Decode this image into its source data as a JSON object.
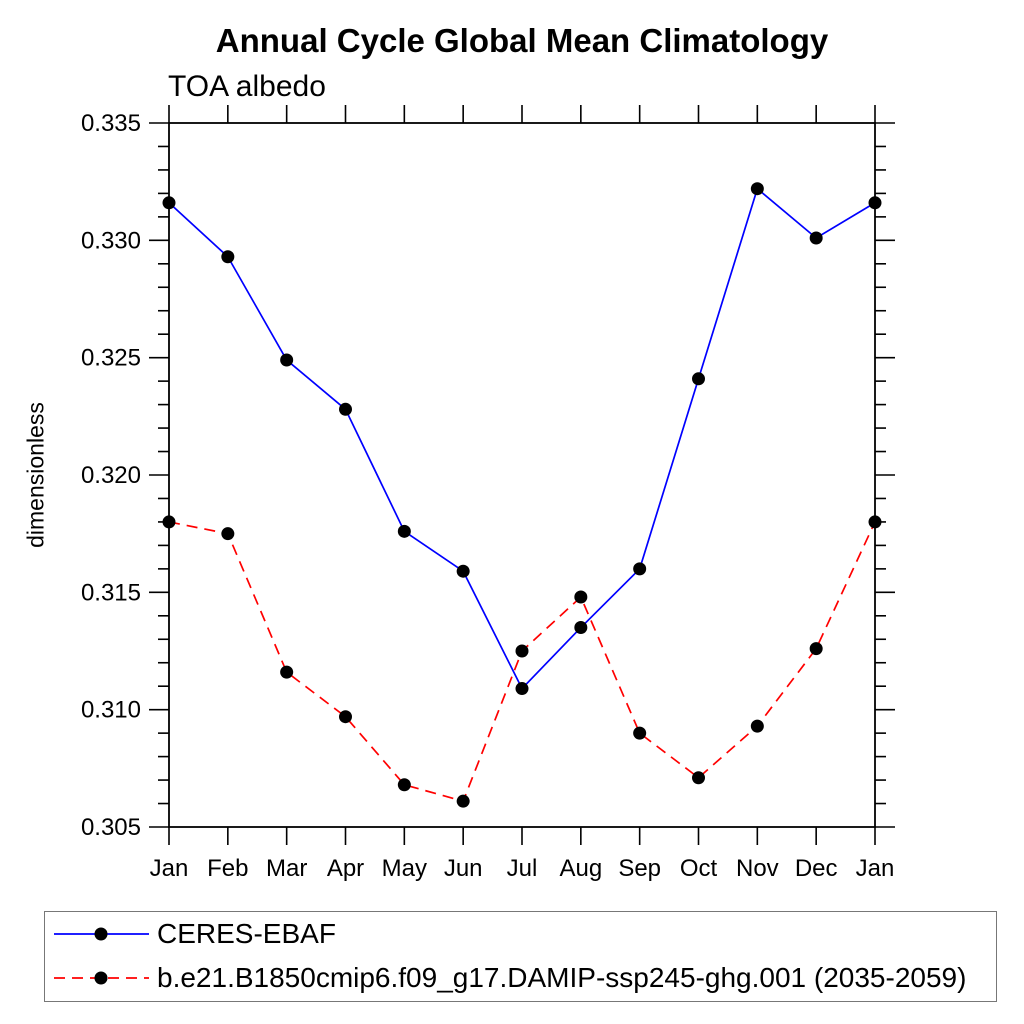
{
  "page": {
    "background_color": "#ffffff"
  },
  "chart_data": {
    "type": "line",
    "title": "Annual Cycle Global Mean Climatology",
    "subtitle": "TOA albedo",
    "xlabel": "",
    "ylabel": "dimensionless",
    "categories": [
      "Jan",
      "Feb",
      "Mar",
      "Apr",
      "May",
      "Jun",
      "Jul",
      "Aug",
      "Sep",
      "Oct",
      "Nov",
      "Dec",
      "Jan"
    ],
    "ylim": [
      0.305,
      0.335
    ],
    "y_major_step": 0.005,
    "y_minor_step": 0.001,
    "y_tick_decimals": 3,
    "y_major_tick_labels": [
      "0.305",
      "0.310",
      "0.315",
      "0.320",
      "0.325",
      "0.330",
      "0.335"
    ],
    "grid": false,
    "tick_direction": "outward",
    "legend_position": "bottom-left-box",
    "axis_color": "#000000",
    "marker": {
      "shape": "circle",
      "color": "#000000",
      "radius": 6.5
    },
    "series": [
      {
        "name": "CERES-EBAF",
        "color": "#0000ff",
        "line_style": "solid",
        "values": [
          0.3316,
          0.3293,
          0.3249,
          0.3228,
          0.3176,
          0.3159,
          0.3109,
          0.3135,
          0.316,
          0.3241,
          0.3322,
          0.3301,
          0.3316
        ]
      },
      {
        "name": "b.e21.B1850cmip6.f09_g17.DAMIP-ssp245-ghg.001 (2035-2059)",
        "color": "#ff0000",
        "line_style": "dashed",
        "values": [
          0.318,
          0.3175,
          0.3116,
          0.3097,
          0.3068,
          0.3061,
          0.3125,
          0.3148,
          0.309,
          0.3071,
          0.3093,
          0.3126,
          0.318
        ]
      }
    ]
  }
}
